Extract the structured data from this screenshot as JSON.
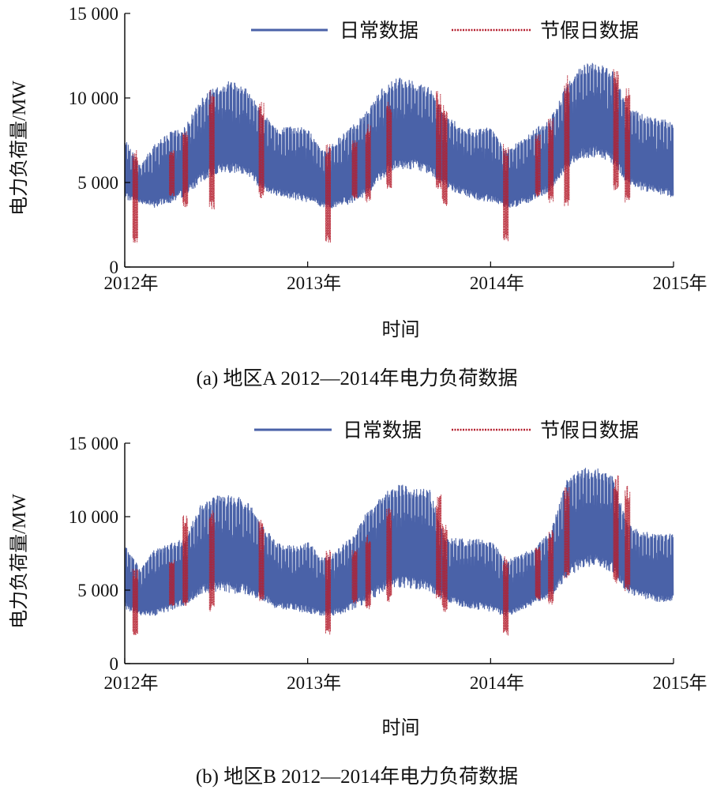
{
  "chart_data": [
    {
      "type": "line",
      "caption": "(a) 地区A 2012—2014年电力负荷数据",
      "xlabel": "时间",
      "ylabel": "电力负荷量/MW",
      "ylim": [
        0,
        15000
      ],
      "yticks": [
        0,
        5000,
        10000,
        15000
      ],
      "ytick_labels": [
        "0",
        "5 000",
        "10 000",
        "15 000"
      ],
      "xlim": [
        "2012-01-01",
        "2015-01-01"
      ],
      "xtick_labels": [
        "2012年",
        "2013年",
        "2014年",
        "2015年"
      ],
      "legend": {
        "placement": "top-right",
        "entries": [
          "日常数据",
          "节假日数据"
        ]
      },
      "series": [
        {
          "name": "日常数据",
          "color": "#4a62a8",
          "style": "solid",
          "envelope_x": [
            "2012-01-01",
            "2012-02-01",
            "2012-03-01",
            "2012-04-01",
            "2012-05-01",
            "2012-06-01",
            "2012-07-01",
            "2012-08-01",
            "2012-09-01",
            "2012-10-01",
            "2012-11-01",
            "2012-12-01",
            "2013-01-01",
            "2013-02-01",
            "2013-03-01",
            "2013-04-01",
            "2013-05-01",
            "2013-06-01",
            "2013-07-01",
            "2013-08-01",
            "2013-09-01",
            "2013-10-01",
            "2013-11-01",
            "2013-12-01",
            "2014-01-01",
            "2014-02-01",
            "2014-03-01",
            "2014-04-01",
            "2014-05-01",
            "2014-06-01",
            "2014-07-01",
            "2014-08-01",
            "2014-09-01",
            "2014-10-01",
            "2014-11-01",
            "2014-12-01",
            "2014-12-31"
          ],
          "envelope_max": [
            7600,
            6000,
            7300,
            8000,
            8300,
            10000,
            10800,
            11000,
            10500,
            9200,
            8300,
            8300,
            8200,
            6800,
            7600,
            8400,
            9300,
            10700,
            11200,
            11000,
            10600,
            9000,
            8400,
            8100,
            8400,
            6800,
            7600,
            8200,
            8800,
            10800,
            11900,
            12200,
            11600,
            9500,
            9000,
            8800,
            8600
          ],
          "envelope_min": [
            4000,
            3800,
            3500,
            3800,
            4200,
            5000,
            5500,
            5600,
            5400,
            4600,
            4200,
            4000,
            3800,
            3500,
            3500,
            3800,
            4300,
            5300,
            5800,
            5800,
            5500,
            4700,
            4300,
            4000,
            3800,
            3500,
            3600,
            4000,
            4500,
            5800,
            6400,
            6500,
            6100,
            4900,
            4500,
            4300,
            4100
          ]
        },
        {
          "name": "节假日数据",
          "color": "#b51f2e",
          "style": "dotted",
          "spikes": [
            {
              "x": "2012-01-22",
              "min": 1400,
              "max": 7000
            },
            {
              "x": "2012-04-04",
              "min": 4200,
              "max": 7000
            },
            {
              "x": "2012-05-01",
              "min": 3500,
              "max": 8200
            },
            {
              "x": "2012-06-23",
              "min": 3400,
              "max": 10600
            },
            {
              "x": "2012-09-30",
              "min": 4000,
              "max": 9800
            },
            {
              "x": "2013-02-10",
              "min": 1400,
              "max": 7400
            },
            {
              "x": "2013-04-04",
              "min": 4000,
              "max": 7500
            },
            {
              "x": "2013-05-01",
              "min": 3800,
              "max": 8500
            },
            {
              "x": "2013-06-12",
              "min": 4500,
              "max": 9900
            },
            {
              "x": "2013-09-19",
              "min": 4500,
              "max": 10400
            },
            {
              "x": "2013-10-01",
              "min": 3600,
              "max": 9600
            },
            {
              "x": "2014-01-31",
              "min": 1500,
              "max": 7300
            },
            {
              "x": "2014-04-05",
              "min": 4100,
              "max": 7900
            },
            {
              "x": "2014-05-01",
              "min": 3800,
              "max": 8800
            },
            {
              "x": "2014-06-02",
              "min": 3600,
              "max": 11400
            },
            {
              "x": "2014-09-08",
              "min": 4500,
              "max": 11800
            },
            {
              "x": "2014-10-01",
              "min": 3800,
              "max": 10600
            }
          ]
        }
      ]
    },
    {
      "type": "line",
      "caption": "(b) 地区B 2012—2014年电力负荷数据",
      "xlabel": "时间",
      "ylabel": "电力负荷量/MW",
      "ylim": [
        0,
        15000
      ],
      "yticks": [
        0,
        5000,
        10000,
        15000
      ],
      "ytick_labels": [
        "0",
        "5 000",
        "10 000",
        "15 000"
      ],
      "xlim": [
        "2012-01-01",
        "2015-01-01"
      ],
      "xtick_labels": [
        "2012年",
        "2013年",
        "2014年",
        "2015年"
      ],
      "legend": {
        "placement": "top-right",
        "entries": [
          "日常数据",
          "节假日数据"
        ]
      },
      "series": [
        {
          "name": "日常数据",
          "color": "#4a62a8",
          "style": "solid",
          "envelope_x": [
            "2012-01-01",
            "2012-02-01",
            "2012-03-01",
            "2012-04-01",
            "2012-05-01",
            "2012-06-01",
            "2012-07-01",
            "2012-08-01",
            "2012-09-01",
            "2012-10-01",
            "2012-11-01",
            "2012-12-01",
            "2013-01-01",
            "2013-02-01",
            "2013-03-01",
            "2013-04-01",
            "2013-05-01",
            "2013-06-01",
            "2013-07-01",
            "2013-08-01",
            "2013-09-01",
            "2013-10-01",
            "2013-11-01",
            "2013-12-01",
            "2014-01-01",
            "2014-02-01",
            "2014-03-01",
            "2014-04-01",
            "2014-05-01",
            "2014-06-01",
            "2014-07-01",
            "2014-08-01",
            "2014-09-01",
            "2014-10-01",
            "2014-11-01",
            "2014-12-01",
            "2014-12-31"
          ],
          "envelope_max": [
            8100,
            6500,
            7800,
            8200,
            8500,
            11000,
            11400,
            11500,
            11200,
            9500,
            8200,
            8000,
            8300,
            7200,
            7800,
            8700,
            10500,
            11600,
            12200,
            12000,
            11800,
            8600,
            8500,
            8500,
            8500,
            7000,
            7400,
            8000,
            9000,
            12500,
            13300,
            13300,
            12800,
            9500,
            9000,
            8900,
            8800
          ],
          "envelope_min": [
            3700,
            3300,
            3200,
            3600,
            4000,
            4700,
            4900,
            4800,
            4700,
            4300,
            3700,
            3600,
            3400,
            3200,
            3300,
            3700,
            4200,
            4900,
            5200,
            5100,
            4900,
            4300,
            3900,
            3700,
            3500,
            3200,
            3600,
            4100,
            4500,
            5800,
            6500,
            6700,
            6200,
            4800,
            4400,
            4200,
            4100
          ]
        },
        {
          "name": "节假日数据",
          "color": "#b51f2e",
          "style": "dotted",
          "spikes": [
            {
              "x": "2012-01-22",
              "min": 1900,
              "max": 6500
            },
            {
              "x": "2012-04-04",
              "min": 3900,
              "max": 7200
            },
            {
              "x": "2012-05-01",
              "min": 3700,
              "max": 10100
            },
            {
              "x": "2012-06-23",
              "min": 3500,
              "max": 10500
            },
            {
              "x": "2012-09-30",
              "min": 4200,
              "max": 9800
            },
            {
              "x": "2013-02-10",
              "min": 1900,
              "max": 7800
            },
            {
              "x": "2013-04-04",
              "min": 4100,
              "max": 7800
            },
            {
              "x": "2013-05-01",
              "min": 3700,
              "max": 8800
            },
            {
              "x": "2013-06-12",
              "min": 4200,
              "max": 10700
            },
            {
              "x": "2013-09-19",
              "min": 4200,
              "max": 11500
            },
            {
              "x": "2013-10-01",
              "min": 3500,
              "max": 9700
            },
            {
              "x": "2014-01-31",
              "min": 1900,
              "max": 7300
            },
            {
              "x": "2014-04-05",
              "min": 4300,
              "max": 8000
            },
            {
              "x": "2014-05-01",
              "min": 4000,
              "max": 9100
            },
            {
              "x": "2014-06-02",
              "min": 5800,
              "max": 12000
            },
            {
              "x": "2014-09-08",
              "min": 5400,
              "max": 12800
            },
            {
              "x": "2014-10-01",
              "min": 4900,
              "max": 12100
            }
          ]
        }
      ]
    }
  ]
}
